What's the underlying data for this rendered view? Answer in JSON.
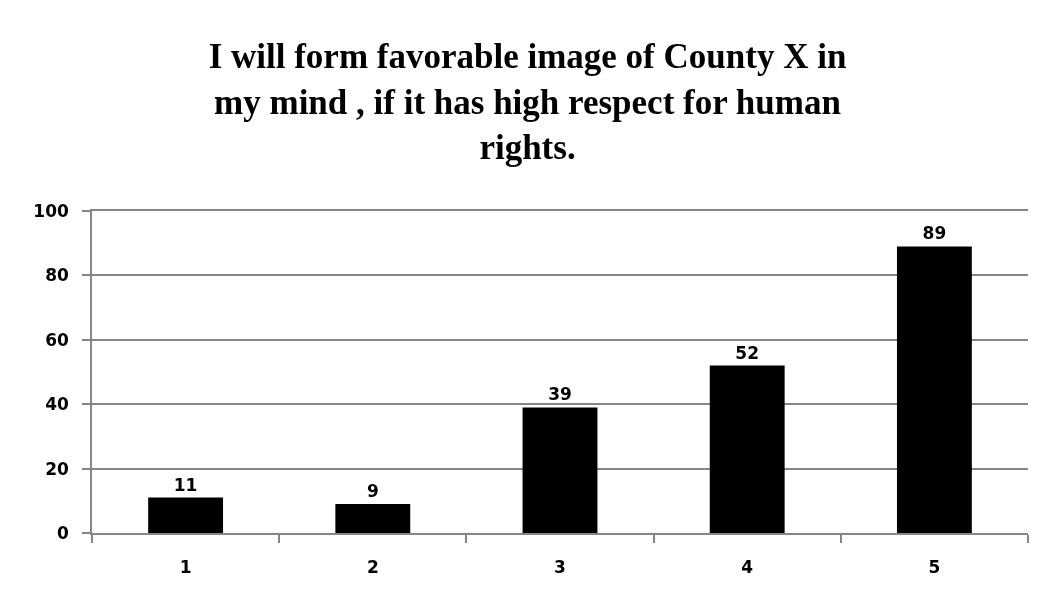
{
  "chart_data": {
    "type": "bar",
    "title": "I will form favorable image of County X in my mind , if it has high respect for human rights.",
    "categories": [
      "1",
      "2",
      "3",
      "4",
      "5"
    ],
    "values": [
      11,
      9,
      39,
      52,
      89
    ],
    "color": "#000000",
    "ylim": [
      0,
      100
    ],
    "yticks": [
      0,
      20,
      40,
      60,
      80,
      100
    ],
    "grid": "y",
    "data_labels": true
  }
}
